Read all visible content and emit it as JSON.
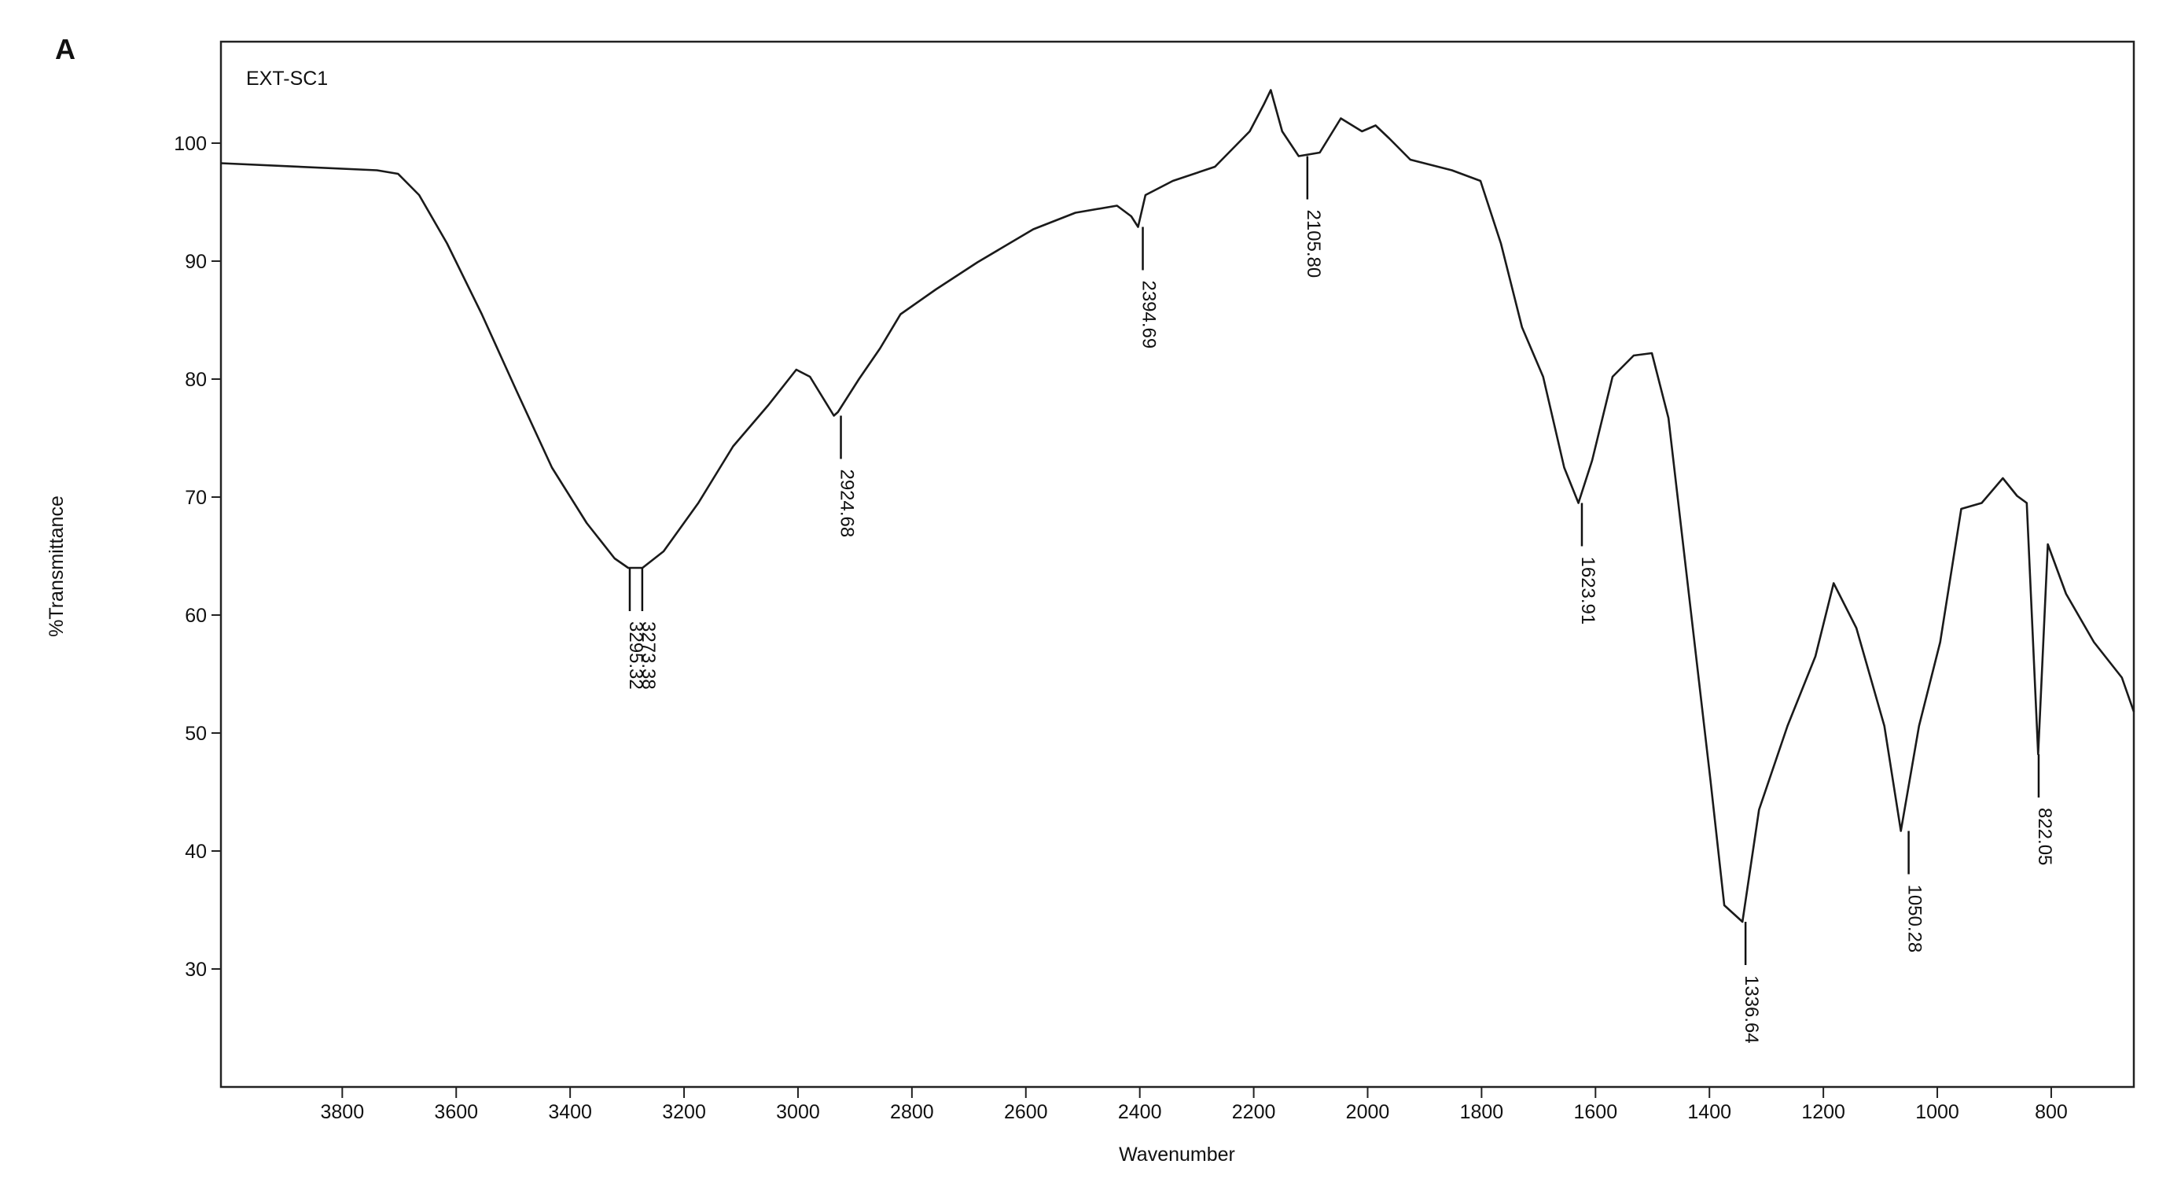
{
  "chart_data": {
    "type": "line",
    "panel_label": "A",
    "legend_text": "EXT-SC1",
    "xlabel": "Wavenumber",
    "ylabel": "%Transmittance",
    "xlim": [
      4013,
      655
    ],
    "xticks": [
      3800,
      3600,
      3400,
      3200,
      3000,
      2800,
      2600,
      2400,
      2200,
      2000,
      1800,
      1600,
      1400,
      1200,
      1000,
      800
    ],
    "ylim": [
      20,
      108.6
    ],
    "yticks": [
      30,
      40,
      50,
      60,
      70,
      80,
      90,
      100
    ],
    "grid": false,
    "series": [
      {
        "color": "#1a1a1a",
        "x": [
          4013,
          3739,
          3702,
          3665,
          3616,
          3555,
          3494,
          3432,
          3371,
          3322,
          3298,
          3273,
          3236,
          3175,
          3114,
          3052,
          3003,
          2979,
          2937,
          2930,
          2893,
          2856,
          2820,
          2758,
          2685,
          2587,
          2513,
          2440,
          2415,
          2403,
          2390,
          2342,
          2268,
          2207,
          2182,
          2170,
          2150,
          2121,
          2084,
          2047,
          2010,
          1986,
          1962,
          1925,
          1852,
          1802,
          1766,
          1729,
          1692,
          1655,
          1630,
          1606,
          1570,
          1533,
          1501,
          1472,
          1435,
          1398,
          1374,
          1342,
          1313,
          1263,
          1214,
          1182,
          1142,
          1093,
          1064,
          1032,
          995,
          958,
          922,
          885,
          860,
          843,
          823,
          806,
          774,
          725,
          676,
          655
        ],
        "values": [
          98.3,
          97.7,
          97.4,
          95.6,
          91.5,
          85.5,
          79,
          72.5,
          67.8,
          64.8,
          64,
          64,
          65.4,
          69.5,
          74.3,
          77.8,
          80.8,
          80.2,
          76.9,
          77.2,
          80,
          82.6,
          85.5,
          87.6,
          89.9,
          92.7,
          94.1,
          94.7,
          93.8,
          92.9,
          95.6,
          96.8,
          98,
          101,
          103.3,
          104.5,
          101,
          98.9,
          99.2,
          102.1,
          101,
          101.5,
          100.4,
          98.6,
          97.7,
          96.8,
          91.5,
          84.4,
          80.2,
          72.5,
          69.5,
          73.1,
          80.2,
          82,
          82.2,
          76.7,
          61.3,
          45.9,
          35.4,
          34,
          43.5,
          50.6,
          56.5,
          62.7,
          58.9,
          50.6,
          41.7,
          50.6,
          57.7,
          69,
          69.5,
          71.6,
          70.1,
          69.5,
          48.2,
          66,
          61.8,
          57.7,
          54.7,
          51.8
        ]
      }
    ],
    "annotations": [
      {
        "x": 3295.32,
        "y": 64,
        "label": "3295.32"
      },
      {
        "x": 3273.38,
        "y": 64,
        "label": "3273.38"
      },
      {
        "x": 2924.68,
        "y": 76.9,
        "label": "2924.68"
      },
      {
        "x": 2394.69,
        "y": 92.9,
        "label": "2394.69"
      },
      {
        "x": 2105.8,
        "y": 98.9,
        "label": "2105.80"
      },
      {
        "x": 1623.91,
        "y": 69.5,
        "label": "1623.91"
      },
      {
        "x": 1336.64,
        "y": 34,
        "label": "1336.64"
      },
      {
        "x": 1050.28,
        "y": 41.7,
        "label": "1050.28"
      },
      {
        "x": 822.05,
        "y": 48.2,
        "label": "822.05"
      }
    ]
  }
}
